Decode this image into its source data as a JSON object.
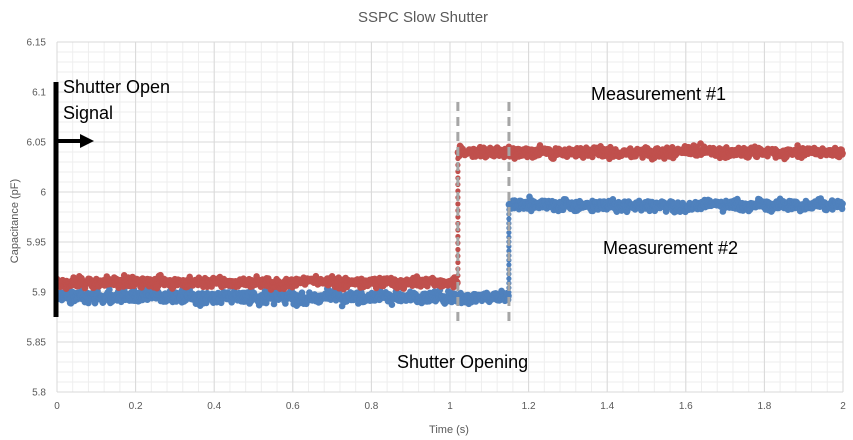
{
  "chart_data": {
    "type": "scatter",
    "title": "SSPC Slow Shutter",
    "xlabel": "Time (s)",
    "ylabel": "Capacitance (pF)",
    "xlim": [
      0,
      2
    ],
    "ylim": [
      5.8,
      6.15
    ],
    "x_ticks": [
      "0",
      "0.2",
      "0.4",
      "0.6",
      "0.8",
      "1",
      "1.2",
      "1.4",
      "1.6",
      "1.8",
      "2"
    ],
    "y_ticks": [
      "5.8",
      "5.85",
      "5.9",
      "5.95",
      "6",
      "6.05",
      "6.1",
      "6.15"
    ],
    "grid": true,
    "series": [
      {
        "name": "Measurement #2",
        "color": "#4f81bd",
        "segments": [
          {
            "x": [
              0,
              1.02
            ],
            "level": 5.895,
            "noise": 0.02
          },
          {
            "x": [
              1.02,
              1.15
            ],
            "level": 5.895,
            "noise": 0.018
          },
          {
            "x": [
              1.15,
              2.0
            ],
            "level": 5.987,
            "noise": 0.017
          }
        ]
      },
      {
        "name": "Measurement #1",
        "color": "#c0504d",
        "segments": [
          {
            "x": [
              0,
              1.02
            ],
            "level": 5.91,
            "noise": 0.016
          },
          {
            "x": [
              1.02,
              2.0
            ],
            "level": 6.04,
            "noise": 0.016
          }
        ]
      }
    ],
    "reference_lines": [
      {
        "x": 1.02,
        "style": "dashed",
        "color": "#a6a6a6"
      },
      {
        "x": 1.15,
        "style": "dashed",
        "color": "#a6a6a6"
      }
    ],
    "shutter_signal": {
      "y": [
        5.875,
        6.11
      ],
      "color": "#000000"
    },
    "annotations": {
      "shutter_open_signal_line1": "Shutter Open",
      "shutter_open_signal_line2": "Signal",
      "measurement1": "Measurement  #1",
      "measurement2": "Measurement  #2",
      "shutter_opening": "Shutter Opening"
    }
  }
}
